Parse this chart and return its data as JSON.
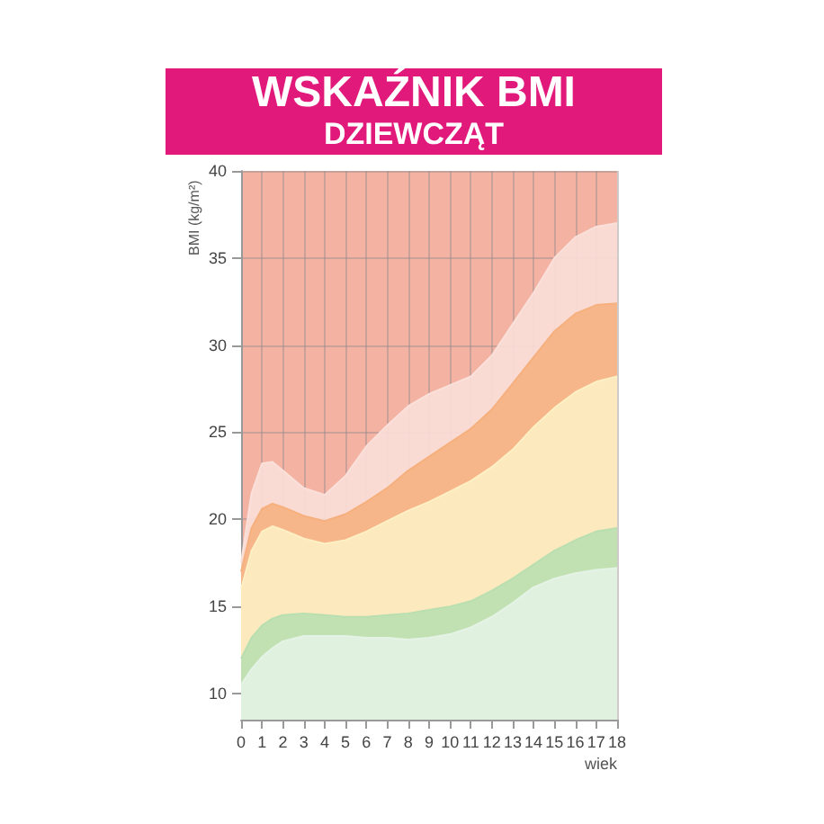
{
  "chart_data": {
    "type": "area",
    "title": "WSKAŹNIK BMI",
    "subtitle": "DZIEWCZĄT",
    "xlabel": "wiek",
    "ylabel": "BMI (kg/m²)",
    "x": [
      0,
      0.5,
      1,
      1.5,
      2,
      3,
      4,
      5,
      6,
      7,
      8,
      9,
      10,
      11,
      12,
      13,
      14,
      15,
      16,
      17,
      18
    ],
    "series": [
      {
        "color": "#fae0da",
        "values": [
          17.5,
          21.5,
          23.2,
          23.3,
          22.8,
          21.8,
          21.4,
          22.5,
          24.2,
          25.4,
          26.5,
          27.2,
          27.7,
          28.2,
          29.4,
          31.2,
          33.0,
          35.0,
          36.2,
          36.8,
          37.0
        ]
      },
      {
        "color": "#f6b07e",
        "values": [
          17.0,
          19.5,
          20.6,
          20.9,
          20.7,
          20.2,
          19.9,
          20.3,
          21.0,
          21.8,
          22.8,
          23.6,
          24.4,
          25.2,
          26.3,
          27.8,
          29.3,
          30.8,
          31.8,
          32.3,
          32.4
        ]
      },
      {
        "color": "#fdf0c4",
        "values": [
          16.0,
          18.2,
          19.3,
          19.6,
          19.4,
          18.9,
          18.6,
          18.8,
          19.3,
          19.9,
          20.5,
          21.0,
          21.6,
          22.2,
          23.0,
          24.0,
          25.3,
          26.4,
          27.3,
          27.9,
          28.2
        ]
      },
      {
        "color": "#b9dfb0",
        "values": [
          12.0,
          13.2,
          13.9,
          14.3,
          14.5,
          14.6,
          14.5,
          14.4,
          14.4,
          14.5,
          14.6,
          14.8,
          15.0,
          15.3,
          15.9,
          16.6,
          17.4,
          18.2,
          18.8,
          19.3,
          19.5
        ]
      },
      {
        "color": "#e4f3e6",
        "values": [
          10.5,
          11.4,
          12.1,
          12.6,
          13.0,
          13.3,
          13.3,
          13.3,
          13.2,
          13.2,
          13.1,
          13.2,
          13.4,
          13.8,
          14.4,
          15.2,
          16.1,
          16.6,
          16.9,
          17.1,
          17.2
        ]
      }
    ],
    "xlim": [
      0,
      18
    ],
    "xticks": [
      0,
      1,
      2,
      3,
      4,
      5,
      6,
      7,
      8,
      9,
      10,
      11,
      12,
      13,
      14,
      15,
      16,
      17,
      18
    ],
    "ylim": [
      8.5,
      40
    ],
    "yticks": [
      10,
      15,
      20,
      25,
      30,
      35,
      40
    ],
    "grid": true,
    "marker": "none"
  }
}
